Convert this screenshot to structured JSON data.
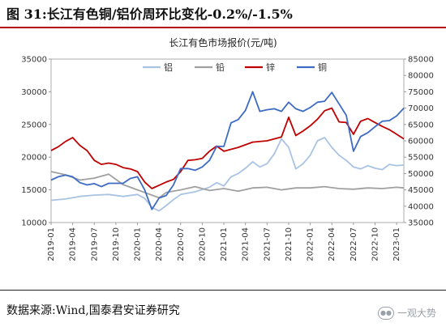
{
  "figure_title": "图 31:长江有色铜/铝价周环比变化-0.2%/-1.5%",
  "source": "数据来源:Wind,国泰君安证券研究",
  "watermark": "一观大势",
  "colors": {
    "title_rule": "#b00000",
    "aluminum": "#a9c3e3",
    "lead": "#a0a0a0",
    "zinc": "#c00000",
    "copper": "#3d6bc4"
  },
  "chart_data": {
    "type": "line",
    "title": "长江有色市场报价(元/吨)",
    "x_tick_labels": [
      "2019-01",
      "2019-04",
      "2019-07",
      "2019-10",
      "2020-01",
      "2020-04",
      "2020-07",
      "2020-10",
      "2021-01",
      "2021-04",
      "2021-07",
      "2021-10",
      "2022-01",
      "2022-04",
      "2022-07",
      "2022-10",
      "2023-01"
    ],
    "x_range": [
      "2019-01",
      "2023-02"
    ],
    "ylim_left": [
      10000,
      35000
    ],
    "yticks_left": [
      10000,
      15000,
      20000,
      25000,
      30000,
      35000
    ],
    "ylim_right": [
      35000,
      85000
    ],
    "yticks_right": [
      35000,
      40000,
      45000,
      50000,
      55000,
      60000,
      65000,
      70000,
      75000,
      80000,
      85000
    ],
    "legend_position": "top",
    "grid": false,
    "series": [
      {
        "name": "铝",
        "axis": "left",
        "color": "#a9c3e3",
        "x": [
          "2019-01",
          "2019-03",
          "2019-05",
          "2019-07",
          "2019-09",
          "2019-11",
          "2020-01",
          "2020-02",
          "2020-03",
          "2020-04",
          "2020-05",
          "2020-06",
          "2020-07",
          "2020-09",
          "2020-11",
          "2020-12",
          "2021-01",
          "2021-02",
          "2021-03",
          "2021-04",
          "2021-05",
          "2021-06",
          "2021-07",
          "2021-08",
          "2021-09",
          "2021-10",
          "2021-11",
          "2021-12",
          "2022-01",
          "2022-02",
          "2022-03",
          "2022-04",
          "2022-05",
          "2022-06",
          "2022-07",
          "2022-08",
          "2022-09",
          "2022-10",
          "2022-11",
          "2022-12",
          "2023-01",
          "2023-02"
        ],
        "values": [
          13400,
          13600,
          14000,
          14200,
          14300,
          14000,
          14300,
          13700,
          12300,
          11800,
          12600,
          13500,
          14300,
          14700,
          15400,
          16100,
          15600,
          17000,
          17500,
          18300,
          19300,
          18500,
          19000,
          20500,
          22800,
          21500,
          18200,
          19000,
          20300,
          22500,
          23000,
          21500,
          20300,
          19500,
          18500,
          18200,
          18700,
          18300,
          18100,
          18900,
          18700,
          18800
        ]
      },
      {
        "name": "铅",
        "axis": "left",
        "color": "#a0a0a0",
        "x": [
          "2019-01",
          "2019-03",
          "2019-05",
          "2019-07",
          "2019-09",
          "2019-11",
          "2020-01",
          "2020-02",
          "2020-03",
          "2020-04",
          "2020-05",
          "2020-07",
          "2020-09",
          "2020-11",
          "2021-01",
          "2021-03",
          "2021-05",
          "2021-07",
          "2021-09",
          "2021-11",
          "2022-01",
          "2022-03",
          "2022-05",
          "2022-07",
          "2022-09",
          "2022-11",
          "2023-01",
          "2023-02"
        ],
        "values": [
          17800,
          17300,
          16500,
          16800,
          17400,
          15800,
          15000,
          14600,
          14200,
          13800,
          14600,
          15000,
          15500,
          14900,
          15200,
          14800,
          15300,
          15400,
          15000,
          15300,
          15300,
          15500,
          15200,
          15100,
          15300,
          15200,
          15400,
          15300
        ]
      },
      {
        "name": "锌",
        "axis": "left",
        "color": "#c00000",
        "x": [
          "2019-01",
          "2019-02",
          "2019-03",
          "2019-04",
          "2019-05",
          "2019-06",
          "2019-07",
          "2019-08",
          "2019-09",
          "2019-10",
          "2019-11",
          "2019-12",
          "2020-01",
          "2020-02",
          "2020-03",
          "2020-04",
          "2020-05",
          "2020-06",
          "2020-07",
          "2020-08",
          "2020-09",
          "2020-10",
          "2020-11",
          "2020-12",
          "2021-01",
          "2021-03",
          "2021-05",
          "2021-07",
          "2021-09",
          "2021-10",
          "2021-11",
          "2021-12",
          "2022-01",
          "2022-02",
          "2022-03",
          "2022-04",
          "2022-05",
          "2022-06",
          "2022-07",
          "2022-08",
          "2022-09",
          "2022-10",
          "2022-11",
          "2022-12",
          "2023-01",
          "2023-02"
        ],
        "values": [
          21000,
          21600,
          22400,
          23000,
          21800,
          21000,
          19500,
          18900,
          19100,
          18900,
          18400,
          18200,
          17800,
          16200,
          15200,
          15700,
          16200,
          16600,
          17800,
          19500,
          19600,
          19800,
          20900,
          21700,
          20900,
          21500,
          22300,
          22500,
          23100,
          26100,
          23300,
          24000,
          24800,
          25800,
          27100,
          27500,
          25400,
          25300,
          23500,
          25500,
          25900,
          25300,
          24700,
          24200,
          23500,
          22800
        ]
      },
      {
        "name": "铜",
        "axis": "right",
        "color": "#3d6bc4",
        "x": [
          "2019-01",
          "2019-02",
          "2019-03",
          "2019-04",
          "2019-05",
          "2019-06",
          "2019-07",
          "2019-08",
          "2019-09",
          "2019-10",
          "2019-11",
          "2019-12",
          "2020-01",
          "2020-02",
          "2020-03",
          "2020-04",
          "2020-05",
          "2020-06",
          "2020-07",
          "2020-08",
          "2020-09",
          "2020-10",
          "2020-11",
          "2020-12",
          "2021-01",
          "2021-02",
          "2021-03",
          "2021-04",
          "2021-05",
          "2021-06",
          "2021-07",
          "2021-08",
          "2021-09",
          "2021-10",
          "2021-11",
          "2021-12",
          "2022-01",
          "2022-02",
          "2022-03",
          "2022-04",
          "2022-05",
          "2022-06",
          "2022-07",
          "2022-08",
          "2022-09",
          "2022-10",
          "2022-11",
          "2022-12",
          "2023-01",
          "2023-02"
        ],
        "values": [
          48000,
          49000,
          49500,
          49000,
          47200,
          46500,
          46900,
          46000,
          47000,
          47000,
          47000,
          48500,
          49000,
          45000,
          39000,
          42500,
          43300,
          46500,
          51500,
          51500,
          51000,
          52000,
          54000,
          58300,
          58300,
          65500,
          66500,
          69300,
          75000,
          69000,
          69500,
          69800,
          69000,
          71800,
          69800,
          69000,
          70200,
          71800,
          72100,
          74800,
          71300,
          67800,
          56800,
          61300,
          62500,
          64300,
          66000,
          66200,
          67600,
          70000
        ]
      }
    ]
  }
}
